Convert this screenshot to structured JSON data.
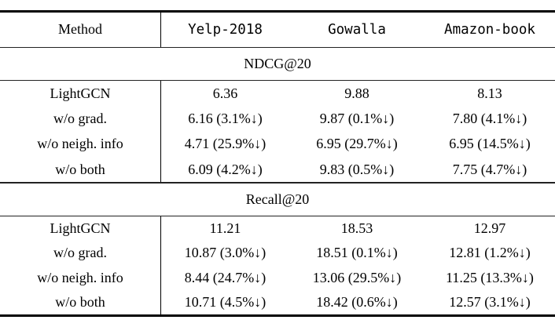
{
  "colors": {
    "background": "#ffffff",
    "text": "#000000",
    "rule": "#000000"
  },
  "table": {
    "columns": [
      "Method",
      "Yelp-2018",
      "Gowalla",
      "Amazon-book"
    ],
    "sections": [
      {
        "title": "NDCG@20",
        "rows": [
          {
            "method": "LightGCN",
            "cells": [
              "6.36",
              "9.88",
              "8.13"
            ]
          },
          {
            "method": "w/o grad.",
            "cells": [
              "6.16 (3.1%↓)",
              "9.87 (0.1%↓)",
              "7.80 (4.1%↓)"
            ]
          },
          {
            "method": "w/o neigh. info",
            "cells": [
              "4.71 (25.9%↓)",
              "6.95 (29.7%↓)",
              "6.95 (14.5%↓)"
            ]
          },
          {
            "method": "w/o both",
            "cells": [
              "6.09 (4.2%↓)",
              "9.83 (0.5%↓)",
              "7.75 (4.7%↓)"
            ]
          }
        ]
      },
      {
        "title": "Recall@20",
        "rows": [
          {
            "method": "LightGCN",
            "cells": [
              "11.21",
              "18.53",
              "12.97"
            ]
          },
          {
            "method": "w/o grad.",
            "cells": [
              "10.87 (3.0%↓)",
              "18.51 (0.1%↓)",
              "12.81 (1.2%↓)"
            ]
          },
          {
            "method": "w/o neigh. info",
            "cells": [
              "8.44 (24.7%↓)",
              "13.06 (29.5%↓)",
              "11.25 (13.3%↓)"
            ]
          },
          {
            "method": "w/o both",
            "cells": [
              "10.71 (4.5%↓)",
              "18.42 (0.6%↓)",
              "12.57 (3.1%↓)"
            ]
          }
        ]
      }
    ]
  }
}
